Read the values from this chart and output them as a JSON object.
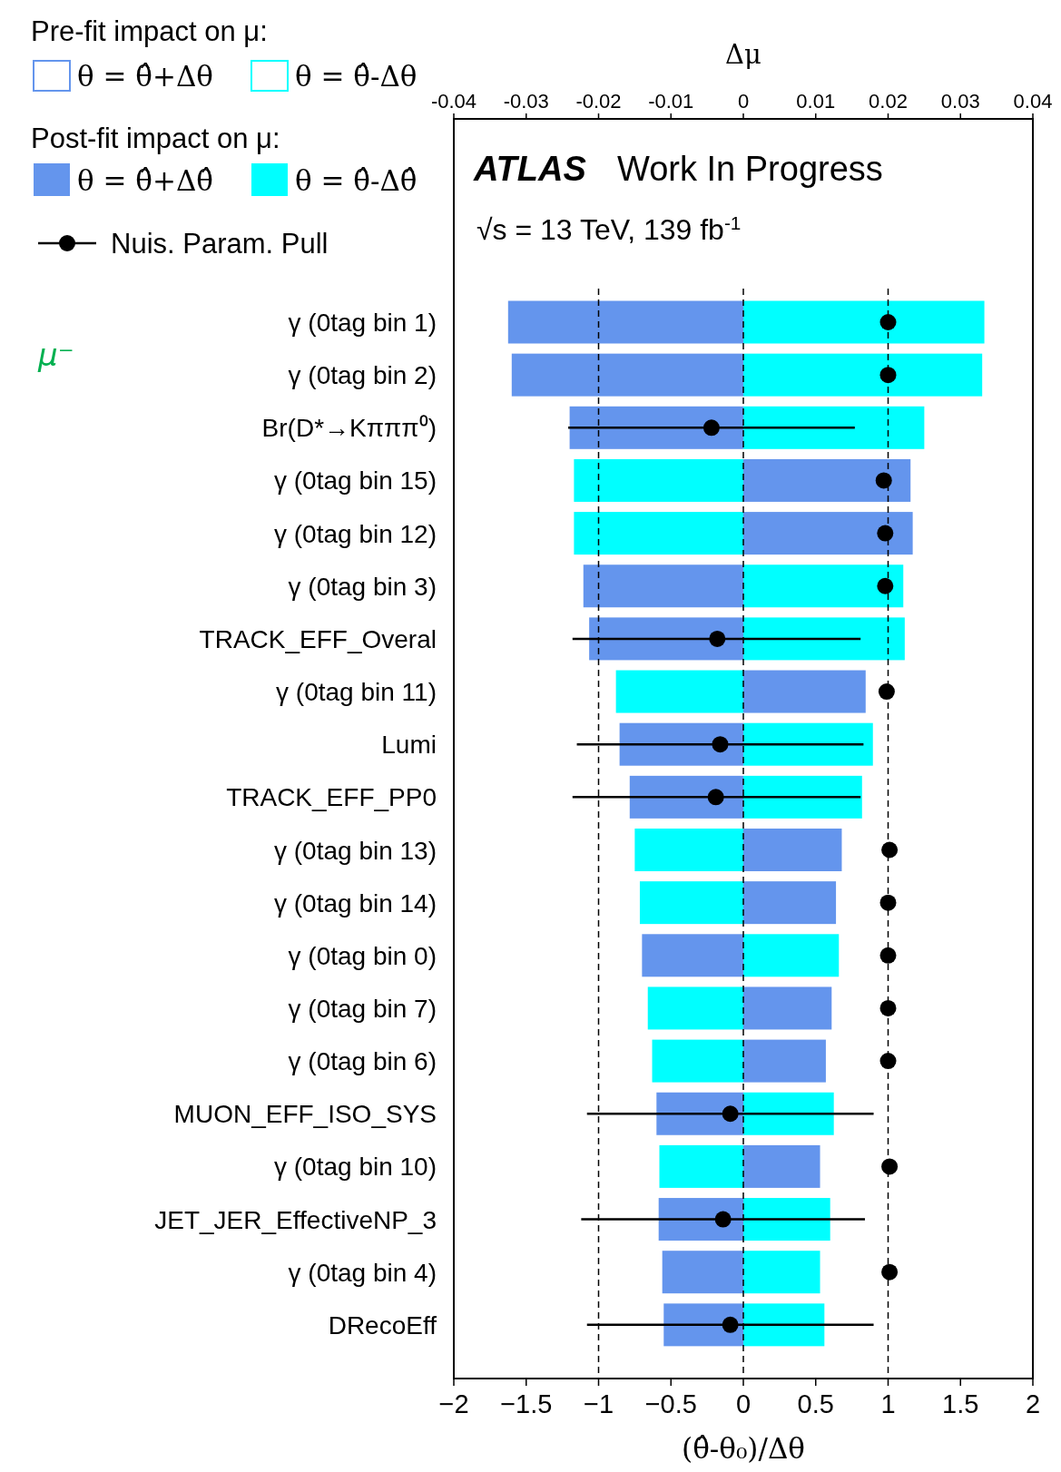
{
  "chart_data": {
    "type": "bar",
    "orientation": "horizontal",
    "stacked": true,
    "categories": [
      "γ (0tag bin 1)",
      "γ (0tag bin 2)",
      "Br(D*→Kπππ⁰)",
      "γ (0tag bin 15)",
      "γ (0tag bin 12)",
      "γ (0tag bin 3)",
      "TRACK_EFF_Overal",
      "γ (0tag bin 11)",
      "Lumi",
      "TRACK_EFF_PP0",
      "γ (0tag bin 13)",
      "γ (0tag bin 14)",
      "γ (0tag bin 0)",
      "γ (0tag bin 7)",
      "γ (0tag bin 6)",
      "MUON_EFF_ISO_SYS",
      "γ (0tag bin 10)",
      "JET_JER_EffectiveNP_3",
      "γ (0tag bin 4)",
      "DRecoEff"
    ],
    "series": [
      {
        "name": "θ = θ̂+Δθ̂",
        "color": "#6495ed",
        "axis": "x2",
        "values": [
          -0.0325,
          -0.032,
          -0.024,
          0.0231,
          0.0234,
          -0.0221,
          -0.0213,
          0.0169,
          -0.0171,
          -0.0157,
          0.0136,
          0.0128,
          -0.014,
          0.0122,
          0.0114,
          -0.012,
          0.0106,
          -0.0117,
          -0.0112,
          -0.011
        ]
      },
      {
        "name": "θ = θ̂-Δθ̂",
        "color": "#00ffff",
        "axis": "x2",
        "values": [
          0.0333,
          0.033,
          0.025,
          -0.0234,
          -0.0234,
          0.0221,
          0.0223,
          -0.0176,
          0.0179,
          0.0164,
          -0.015,
          -0.0143,
          0.0132,
          -0.0132,
          -0.0126,
          0.0125,
          -0.0116,
          0.012,
          0.0106,
          0.0112
        ]
      },
      {
        "name": "Nuis. Param. Pull",
        "type": "scatter",
        "color": "#000000",
        "marker": "circle",
        "values": [
          1.0,
          1.0,
          -0.22,
          0.97,
          0.98,
          0.98,
          -0.18,
          0.99,
          -0.16,
          -0.19,
          1.01,
          1.0,
          1.0,
          1.0,
          1.0,
          -0.09,
          1.01,
          -0.14,
          1.01,
          -0.09
        ],
        "errors": [
          null,
          null,
          [
            -1.21,
            0.77
          ],
          null,
          null,
          null,
          [
            -1.18,
            0.81
          ],
          null,
          [
            -1.15,
            0.83
          ],
          [
            -1.18,
            0.81
          ],
          null,
          null,
          null,
          null,
          null,
          [
            -1.08,
            0.9
          ],
          null,
          [
            -1.12,
            0.84
          ],
          null,
          [
            -1.08,
            0.9
          ]
        ]
      }
    ],
    "xlim": [
      -2,
      2
    ],
    "xticks": [
      -2,
      -1.5,
      -1,
      -0.5,
      0,
      0.5,
      1,
      1.5,
      2
    ],
    "x2lim": [
      -0.04,
      0.04
    ],
    "x2ticks": [
      -0.04,
      -0.03,
      -0.02,
      -0.01,
      0,
      0.01,
      0.02,
      0.03,
      0.04
    ],
    "xlabel": "(θ̂-θ₀)/Δθ",
    "x2label": "Δμ",
    "ref_lines": [
      {
        "axis": "x",
        "value": -1,
        "line_style": "dashed"
      },
      {
        "axis": "x",
        "value": 0,
        "line_style": "dashed"
      },
      {
        "axis": "x",
        "value": 1,
        "line_style": "dashed"
      }
    ],
    "legend": "top left",
    "grid": false,
    "annotations": [
      "Pre-fit impact on μ:",
      "θ = θ̂+Δθ",
      "θ = θ̂-Δθ",
      "Post-fit impact on μ:",
      "ATLAS",
      "Work In Progress",
      "√s = 13 TeV, 139 fb$^{-1}$",
      "μ⁻"
    ]
  }
}
